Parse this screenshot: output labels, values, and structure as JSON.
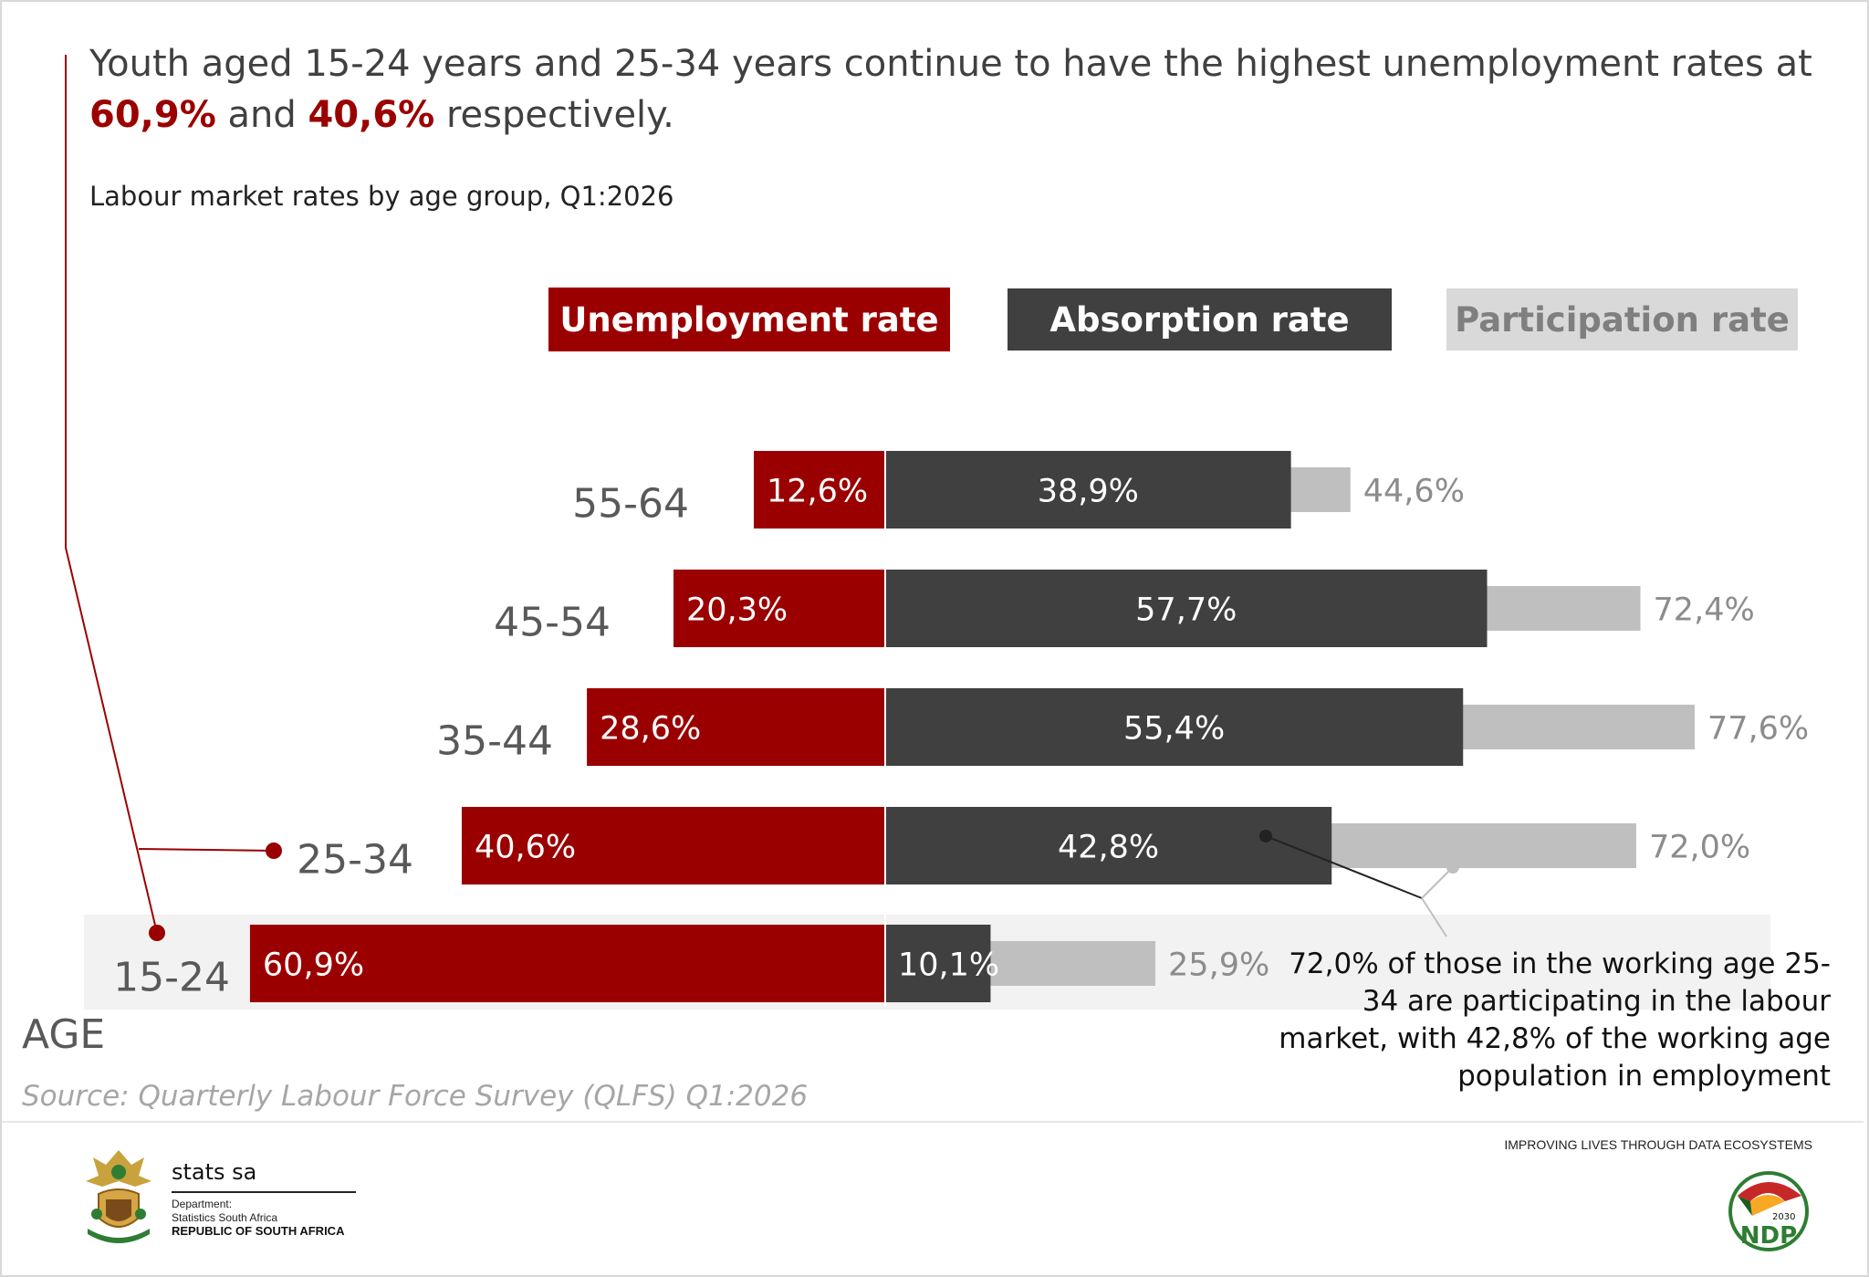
{
  "headline": {
    "part1": "Youth aged 15-24 years and 25-34 years continue to have the highest unemployment rates at ",
    "highlight1": "60,9%",
    "part2": " and ",
    "highlight2": "40,6%",
    "part3": " respectively."
  },
  "subtitle": "Labour market rates by age group, Q1:2026",
  "colors": {
    "unemployment": "#9b0000",
    "absorption": "#404040",
    "participation": "#bfbfbf",
    "age_label": "#595959",
    "participation_label": "#8c8c8c"
  },
  "chart_data": {
    "type": "bar",
    "title": "Labour market rates by age group, Q1:2026",
    "xlabel": "",
    "ylabel": "AGE",
    "categories": [
      "55-64",
      "45-54",
      "35-44",
      "25-34",
      "15-24"
    ],
    "series": [
      {
        "name": "Unemployment rate",
        "values": [
          12.6,
          20.3,
          28.6,
          40.6,
          60.9
        ],
        "labels": [
          "12,6%",
          "20,3%",
          "28,6%",
          "40,6%",
          "60,9%"
        ]
      },
      {
        "name": "Absorption rate",
        "values": [
          38.9,
          57.7,
          55.4,
          42.8,
          10.1
        ],
        "labels": [
          "38,9%",
          "57,7%",
          "55,4%",
          "42,8%",
          "10,1%"
        ]
      },
      {
        "name": "Participation rate",
        "values": [
          44.6,
          72.4,
          77.6,
          72.0,
          25.9
        ],
        "labels": [
          "44,6%",
          "72,4%",
          "77,6%",
          "72,0%",
          "25,9%"
        ]
      }
    ],
    "legend_position": "top",
    "highlighted_categories": [
      "25-34",
      "15-24"
    ]
  },
  "legend": {
    "unemployment": "Unemployment rate",
    "absorption": "Absorption rate",
    "participation": "Participation rate"
  },
  "axis_title": "AGE",
  "source": "Source: Quarterly Labour Force Survey (QLFS) Q1:2026",
  "callout": "72,0% of those in the working age 25-34 are participating in the labour market, with 42,8% of  the working age population in employment",
  "footer": {
    "tagline": "IMPROVING LIVES THROUGH DATA ECOSYSTEMS",
    "org_name": "stats sa",
    "org_line1": "Department:",
    "org_line2": "Statistics South Africa",
    "org_line3": "REPUBLIC OF SOUTH AFRICA",
    "ndp_year": "2030",
    "ndp_text": "NDP"
  }
}
